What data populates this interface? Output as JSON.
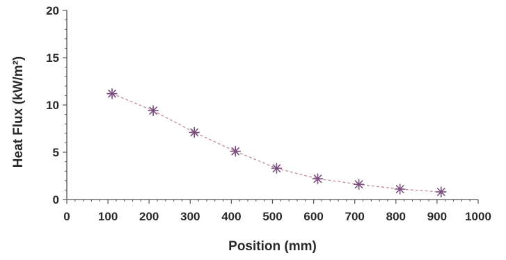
{
  "chart_data": {
    "type": "line",
    "title": "",
    "xlabel": "Position (mm)",
    "ylabel": "Heat Flux (kW/m²)",
    "xlim": [
      0,
      1000
    ],
    "ylim": [
      0,
      20
    ],
    "x_ticks": [
      0,
      100,
      200,
      300,
      400,
      500,
      600,
      700,
      800,
      900,
      1000
    ],
    "x_tick_labels": [
      "0",
      "100",
      "200",
      "300",
      "400",
      "500",
      "600",
      "700",
      "800",
      "900",
      "1000"
    ],
    "y_ticks": [
      0,
      5,
      10,
      15,
      20
    ],
    "y_tick_labels": [
      "0",
      "5",
      "10",
      "15",
      "20"
    ],
    "grid": false,
    "marker": "asterisk",
    "line_style": "dashed",
    "colors": {
      "axis": "#555555",
      "text": "#2a2a2a",
      "marker": "#7a4e7e",
      "line": "#c08aa0"
    },
    "series": [
      {
        "x": [
          110,
          210,
          310,
          410,
          510,
          610,
          710,
          810,
          910
        ],
        "y": [
          11.2,
          9.4,
          7.1,
          5.1,
          3.3,
          2.2,
          1.6,
          1.1,
          0.8
        ]
      }
    ]
  }
}
